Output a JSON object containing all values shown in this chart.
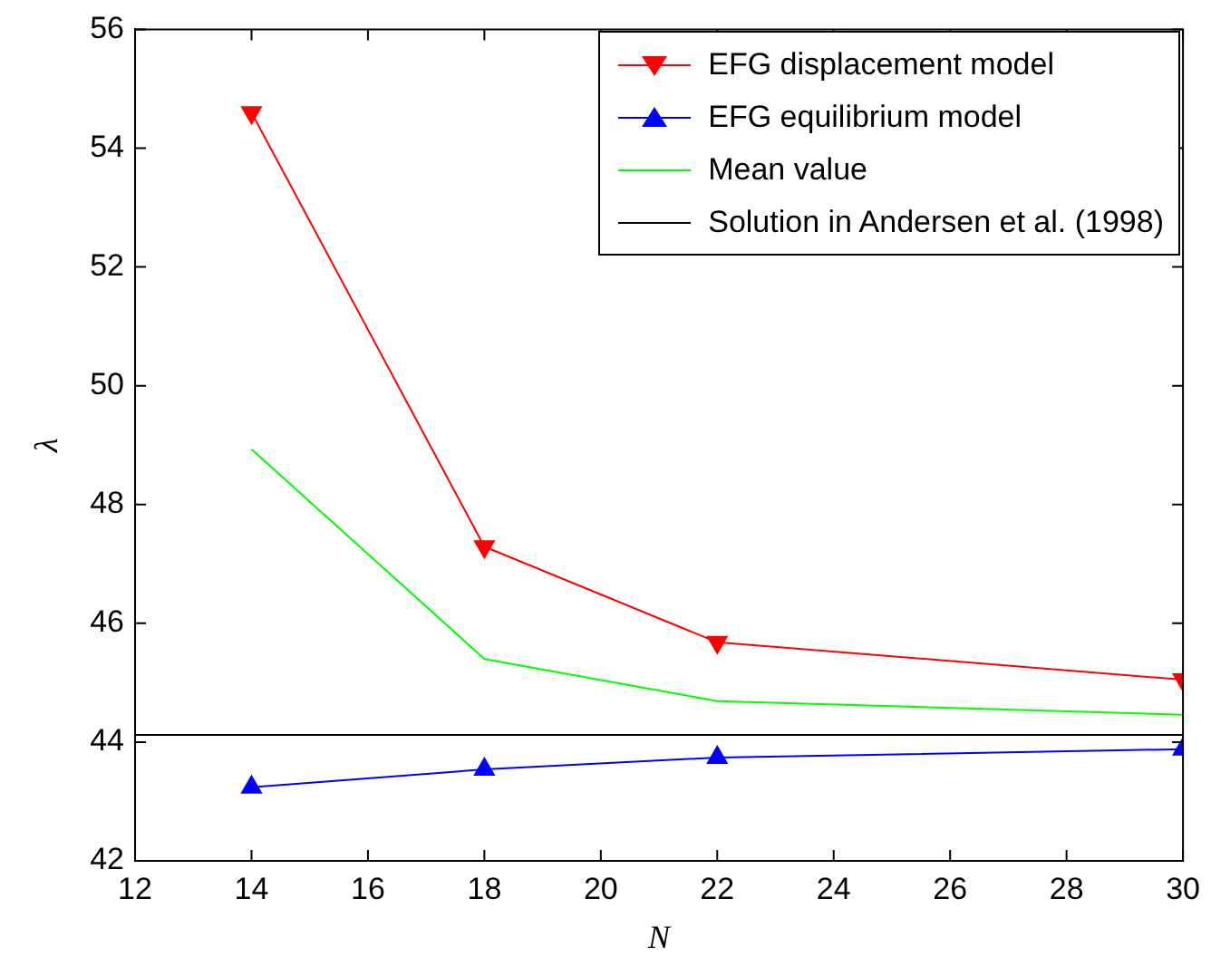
{
  "chart_data": {
    "type": "line",
    "xlabel": "N",
    "ylabel": "λ",
    "x": [
      14,
      18,
      22,
      30
    ],
    "series": [
      {
        "name": "EFG displacement model",
        "color": "#ff0000",
        "marker": "triangle_down",
        "values": [
          54.6,
          47.29,
          45.68,
          45.05
        ]
      },
      {
        "name": "EFG equilibrium model",
        "color": "#0000ff",
        "marker": "triangle",
        "values": [
          43.24,
          43.54,
          43.74,
          43.88
        ]
      },
      {
        "name": "Mean value",
        "color": "#00ff00",
        "marker": "none",
        "values": [
          48.93,
          45.4,
          44.69,
          44.46
        ]
      }
    ],
    "ref_lines": [
      {
        "axis": "y",
        "value": 44.12,
        "label": "Solution in Andersen et al. (1998)",
        "color": "#000000"
      }
    ],
    "xlim": [
      12,
      30
    ],
    "xticks": [
      12,
      14,
      16,
      18,
      20,
      22,
      24,
      26,
      28,
      30
    ],
    "ylim": [
      42,
      56
    ],
    "yticks": [
      42,
      44,
      46,
      48,
      50,
      52,
      54,
      56
    ],
    "legend": "top right"
  }
}
